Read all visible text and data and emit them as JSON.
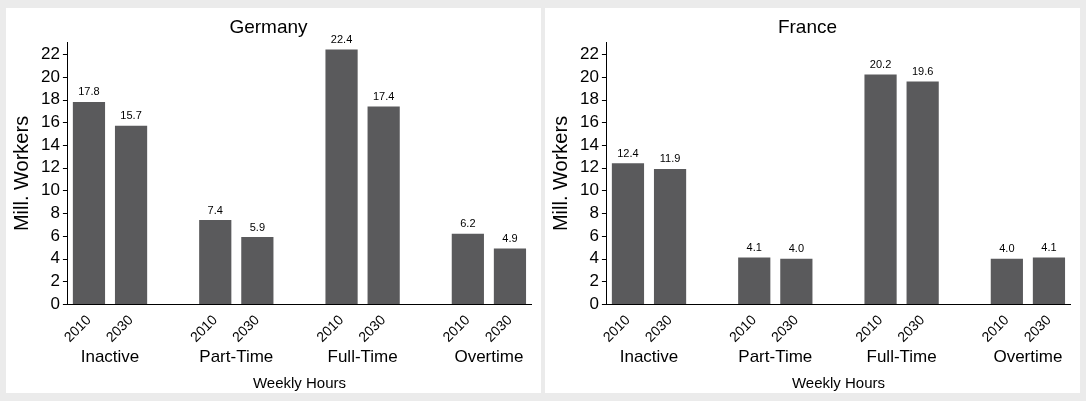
{
  "chart_data": [
    {
      "type": "bar",
      "title": "Germany",
      "xlabel": "Weekly Hours",
      "ylabel": "Mill. Workers",
      "categories": [
        "2010",
        "2030",
        null,
        "2010",
        "2030",
        null,
        "2010",
        "2030",
        null,
        "2010",
        "2030"
      ],
      "values": [
        17.8,
        15.7,
        null,
        7.4,
        5.9,
        null,
        22.4,
        17.4,
        null,
        6.2,
        4.9
      ],
      "value_labels": [
        "17.8",
        "15.7",
        null,
        "7.4",
        "5.9",
        null,
        "22.4",
        "17.4",
        null,
        "6.2",
        "4.9"
      ],
      "color": "#5a5a5c",
      "ylim": [
        0,
        23
      ],
      "yticks": [
        0,
        2,
        4,
        6,
        8,
        10,
        12,
        14,
        16,
        18,
        20,
        22
      ],
      "grid": false,
      "legend": false,
      "annotations": [
        "Inactive",
        "Part-Time",
        "Full-Time",
        "Overtime"
      ]
    },
    {
      "type": "bar",
      "title": "France",
      "xlabel": "Weekly Hours",
      "ylabel": "Mill. Workers",
      "categories": [
        "2010",
        "2030",
        null,
        "2010",
        "2030",
        null,
        "2010",
        "2030",
        null,
        "2010",
        "2030"
      ],
      "values": [
        12.4,
        11.9,
        null,
        4.1,
        4.0,
        null,
        20.2,
        19.6,
        null,
        4.0,
        4.1
      ],
      "value_labels": [
        "12.4",
        "11.9",
        null,
        "4.1",
        "4.0",
        null,
        "20.2",
        "19.6",
        null,
        "4.0",
        "4.1"
      ],
      "color": "#5a5a5c",
      "ylim": [
        0,
        23
      ],
      "yticks": [
        0,
        2,
        4,
        6,
        8,
        10,
        12,
        14,
        16,
        18,
        20,
        22
      ],
      "grid": false,
      "legend": false,
      "annotations": [
        "Inactive",
        "Part-Time",
        "Full-Time",
        "Overtime"
      ]
    }
  ]
}
